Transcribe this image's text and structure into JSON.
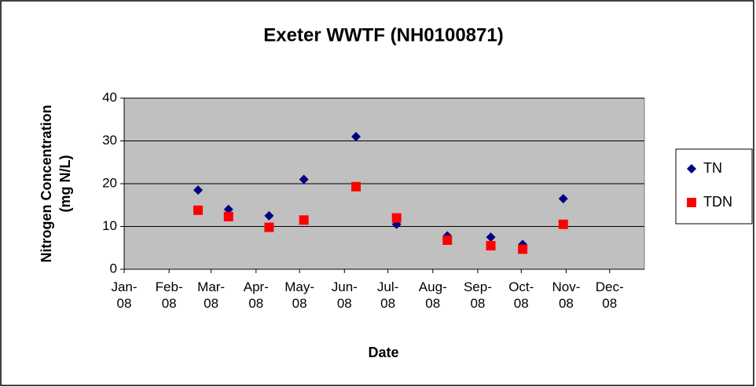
{
  "chart_data": {
    "type": "scatter",
    "title": "Exeter WWTF (NH0100871)",
    "x_label": "Date",
    "y_label": [
      "Nitrogen Concentration",
      "(mg N/L)"
    ],
    "xlim": [
      39448,
      39807
    ],
    "xticks": [
      {
        "value": 39448,
        "label": "Jan-08"
      },
      {
        "value": 39479,
        "label": "Feb-08"
      },
      {
        "value": 39508,
        "label": "Mar-08"
      },
      {
        "value": 39539,
        "label": "Apr-08"
      },
      {
        "value": 39569,
        "label": "May-08"
      },
      {
        "value": 39600,
        "label": "Jun-08"
      },
      {
        "value": 39630,
        "label": "Jul-08"
      },
      {
        "value": 39661,
        "label": "Aug-08"
      },
      {
        "value": 39692,
        "label": "Sep-08"
      },
      {
        "value": 39722,
        "label": "Oct-08"
      },
      {
        "value": 39753,
        "label": "Nov-08"
      },
      {
        "value": 39783,
        "label": "Dec-08"
      }
    ],
    "ylim": [
      0,
      40
    ],
    "yticks": [
      0,
      10,
      20,
      30,
      40
    ],
    "grid": true,
    "legend": "right",
    "x": [
      39499,
      39520,
      39548,
      39572,
      39608,
      39636,
      39671,
      39701,
      39723,
      39751
    ],
    "series": [
      {
        "name": "TN",
        "color": "#000080",
        "marker": "diamond",
        "values": [
          18.5,
          14,
          12.5,
          21,
          31,
          10.5,
          7.8,
          7.5,
          5.8,
          16.5
        ]
      },
      {
        "name": "TDN",
        "color": "#ff0000",
        "marker": "square",
        "values": [
          13.8,
          12.3,
          9.8,
          11.5,
          19.3,
          12,
          6.8,
          5.5,
          4.7,
          10.5
        ]
      }
    ]
  }
}
